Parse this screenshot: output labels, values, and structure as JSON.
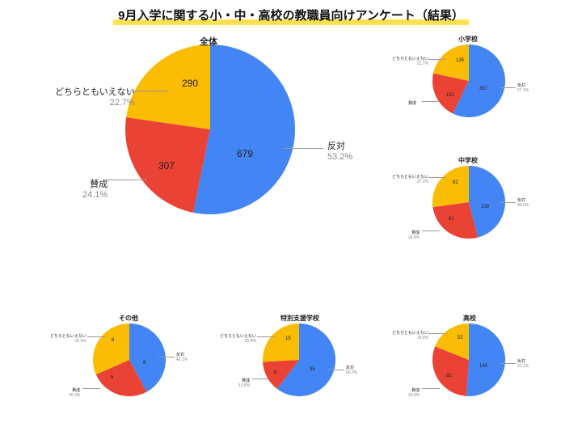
{
  "title": "9月入学に関する小・中・高校の教職員向けアンケート（結果）",
  "colors": {
    "blue": "#4385f4",
    "red": "#ea4335",
    "yellow": "#fbbc04",
    "leader": "#999999",
    "label_muted": "#888888",
    "highlight": "#ffe14f"
  },
  "categories": {
    "oppose": "反対",
    "favor": "賛成",
    "neither": "どちらともいえない"
  },
  "charts": {
    "main": {
      "title": "全体",
      "radius": 105,
      "slices": [
        {
          "key": "oppose",
          "value": 679,
          "pct": "53.2%",
          "color": "#4385f4"
        },
        {
          "key": "favor",
          "value": 307,
          "pct": "24.1%",
          "color": "#ea4335"
        },
        {
          "key": "neither",
          "value": 290,
          "pct": "22.7%",
          "color": "#fbbc04"
        }
      ]
    },
    "elementary": {
      "title": "小学校",
      "radius": 45,
      "slices": [
        {
          "key": "oppose",
          "value": 357,
          "pct": "57.3%",
          "color": "#4385f4"
        },
        {
          "key": "favor",
          "value": 131,
          "pct": "",
          "color": "#ea4335"
        },
        {
          "key": "neither",
          "value": 135,
          "pct": "21.7%",
          "color": "#fbbc04"
        }
      ]
    },
    "junior": {
      "title": "中学校",
      "radius": 45,
      "slices": [
        {
          "key": "oppose",
          "value": 139,
          "pct": "46.0%",
          "color": "#4385f4"
        },
        {
          "key": "favor",
          "value": 81,
          "pct": "26.8%",
          "color": "#ea4335"
        },
        {
          "key": "neither",
          "value": 82,
          "pct": "27.2%",
          "color": "#fbbc04"
        }
      ]
    },
    "other": {
      "title": "その他",
      "radius": 45,
      "slices": [
        {
          "key": "oppose",
          "value": 8,
          "pct": "42.1%",
          "color": "#4385f4"
        },
        {
          "key": "favor",
          "value": 5,
          "pct": "26.3%",
          "color": "#ea4335"
        },
        {
          "key": "neither",
          "value": 6,
          "pct": "31.6%",
          "color": "#fbbc04"
        }
      ]
    },
    "special": {
      "title": "特別支援学校",
      "radius": 45,
      "slices": [
        {
          "key": "oppose",
          "value": 35,
          "pct": "60.3%",
          "color": "#4385f4"
        },
        {
          "key": "favor",
          "value": 8,
          "pct": "13.8%",
          "color": "#ea4335"
        },
        {
          "key": "neither",
          "value": 15,
          "pct": "25.9%",
          "color": "#fbbc04"
        }
      ]
    },
    "high": {
      "title": "高校",
      "radius": 45,
      "slices": [
        {
          "key": "oppose",
          "value": 140,
          "pct": "51.1%",
          "color": "#4385f4"
        },
        {
          "key": "favor",
          "value": 82,
          "pct": "29.9%",
          "color": "#ea4335"
        },
        {
          "key": "neither",
          "value": 52,
          "pct": "19.0%",
          "color": "#fbbc04"
        }
      ]
    }
  }
}
